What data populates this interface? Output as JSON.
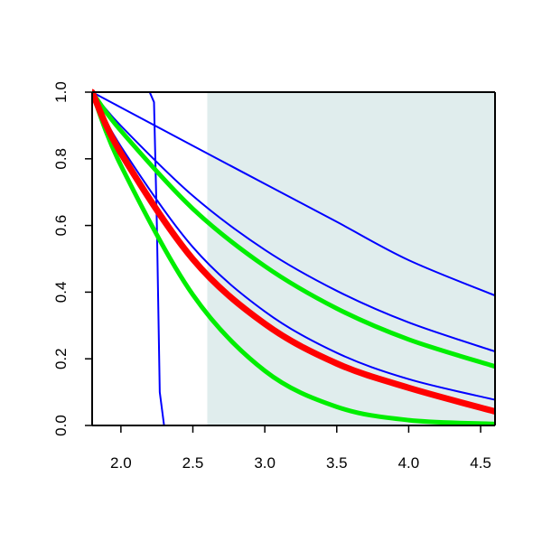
{
  "chart_data": {
    "type": "line",
    "title": "",
    "xlabel": "",
    "ylabel": "",
    "xlim": [
      1.8,
      4.6
    ],
    "ylim": [
      0,
      1
    ],
    "x_ticks": [
      "2.0",
      "2.5",
      "3.0",
      "3.5",
      "4.0",
      "4.5"
    ],
    "y_ticks": [
      "0.0",
      "0.2",
      "0.4",
      "0.6",
      "0.8",
      "1.0"
    ],
    "grid": false,
    "shaded_region": {
      "x_from": 2.6,
      "x_to": 4.6,
      "color": "#e0eded"
    },
    "series": [
      {
        "color": "#0000ff",
        "width": 2,
        "x": [
          1.8,
          2.2,
          2.23,
          2.25,
          2.27,
          2.3,
          4.6
        ],
        "y": [
          1,
          1,
          0.97,
          0.6,
          0.1,
          0,
          0
        ]
      },
      {
        "color": "#0000ff",
        "width": 2,
        "x": [
          1.8,
          2.0,
          2.5,
          3.0,
          3.5,
          4.0,
          4.6
        ],
        "y": [
          1,
          0.954,
          0.839,
          0.725,
          0.611,
          0.496,
          0.39
        ]
      },
      {
        "color": "#0000ff",
        "width": 2,
        "x": [
          1.8,
          2.0,
          2.5,
          3.0,
          3.5,
          4.0,
          4.6
        ],
        "y": [
          1,
          0.899,
          0.689,
          0.527,
          0.404,
          0.309,
          0.222
        ]
      },
      {
        "color": "#0000ff",
        "width": 2,
        "x": [
          1.8,
          2.0,
          2.5,
          3.0,
          3.5,
          4.0,
          4.6
        ],
        "y": [
          1,
          0.837,
          0.535,
          0.342,
          0.218,
          0.139,
          0.077
        ]
      },
      {
        "color": "#00ee00",
        "width": 5,
        "x": [
          1.8,
          2.0,
          2.5,
          3.0,
          3.5,
          4.0,
          4.6
        ],
        "y": [
          1,
          0.884,
          0.65,
          0.478,
          0.351,
          0.258,
          0.177
        ]
      },
      {
        "color": "#00ee00",
        "width": 5,
        "x": [
          1.8,
          2.0,
          2.5,
          3.0,
          3.5,
          4.0,
          4.6
        ],
        "y": [
          1,
          0.78,
          0.392,
          0.164,
          0.056,
          0.016,
          0.0045
        ]
      },
      {
        "color": "#ff0000",
        "width": 7,
        "x": [
          1.8,
          2.0,
          2.5,
          3.0,
          3.5,
          4.0,
          4.6
        ],
        "y": [
          1,
          0.817,
          0.499,
          0.305,
          0.186,
          0.113,
          0.042
        ]
      }
    ]
  }
}
